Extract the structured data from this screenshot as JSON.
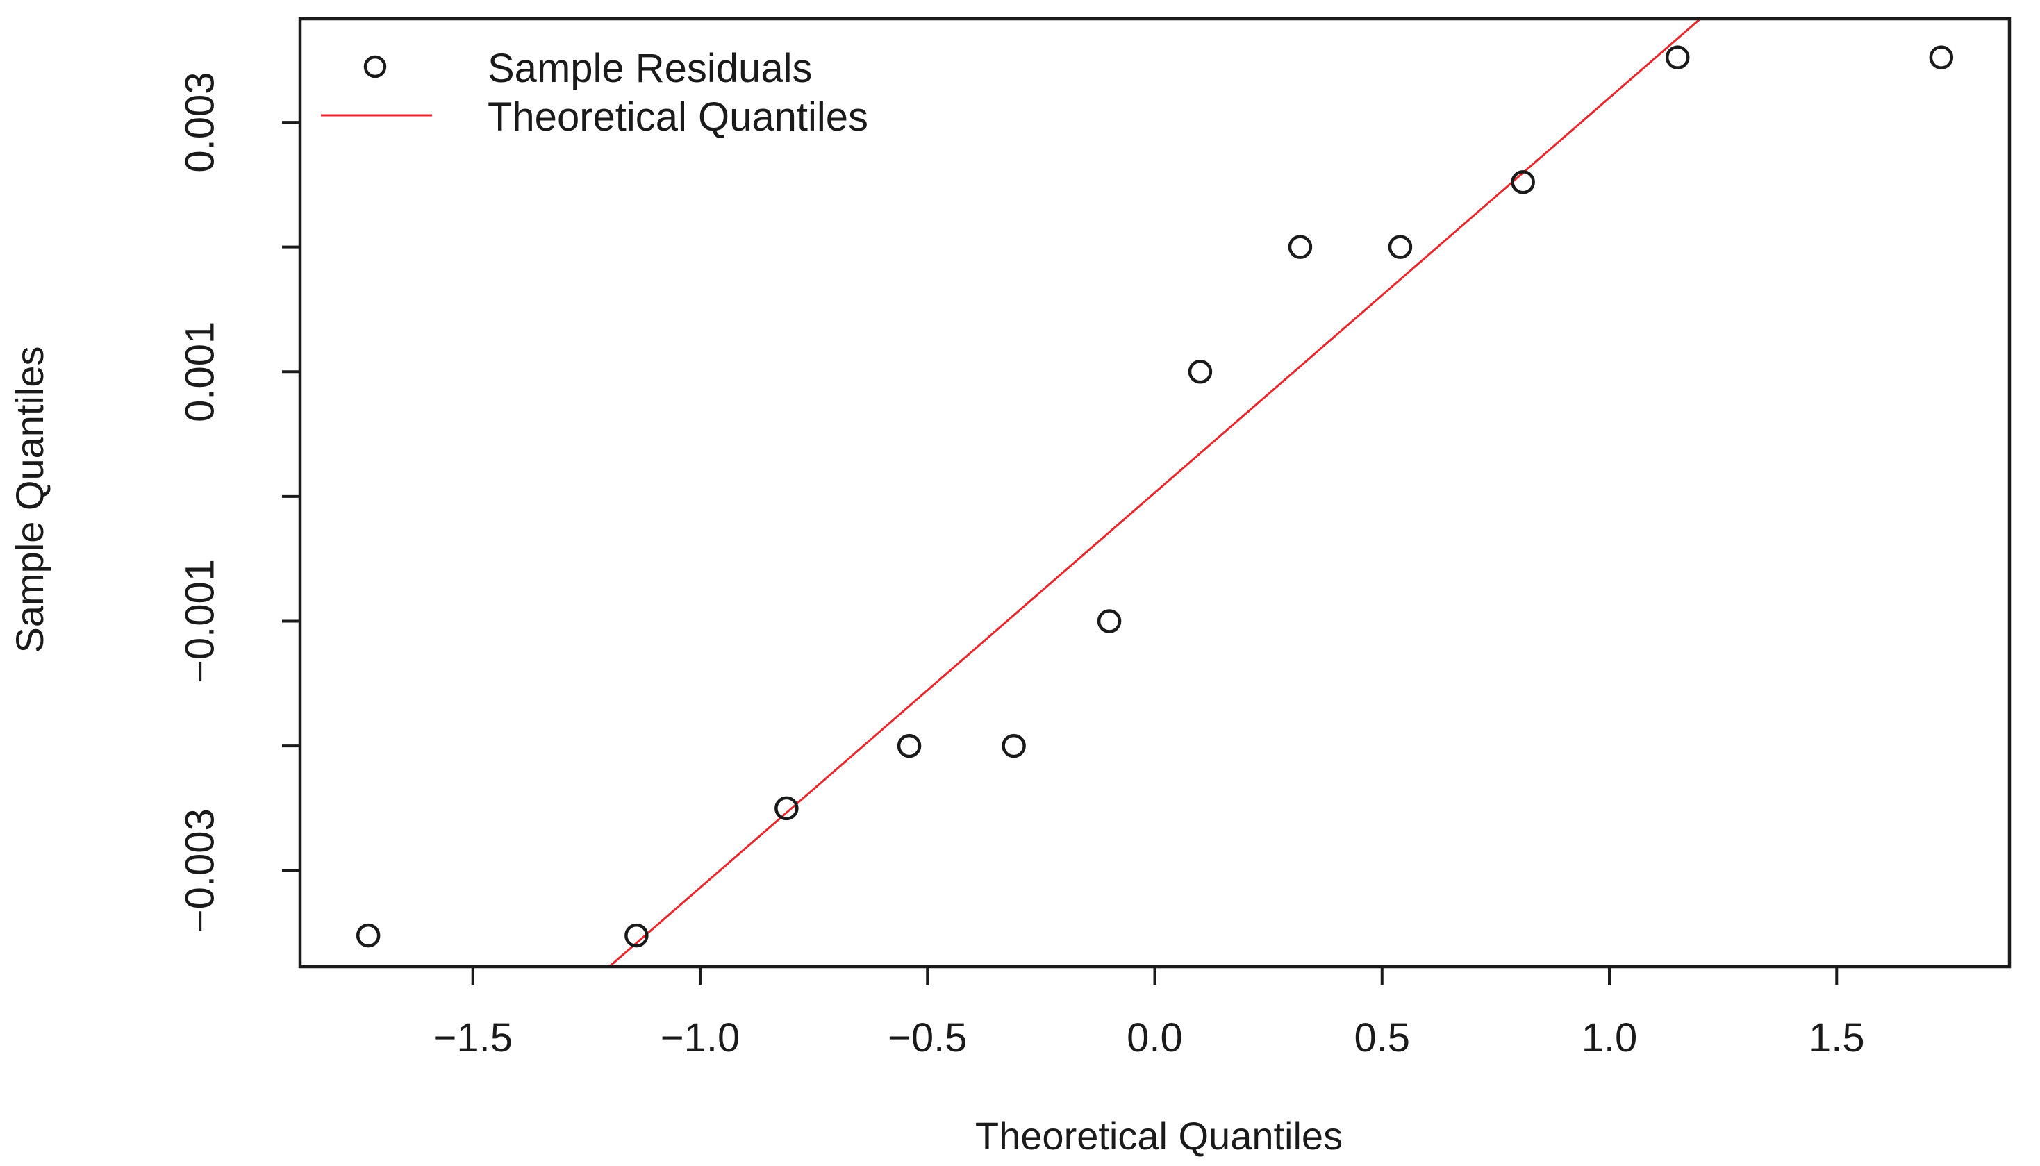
{
  "chart_data": {
    "type": "scatter",
    "title": "",
    "xlabel": "Theoretical Quantiles",
    "ylabel": "Sample Quantiles",
    "xlim": [
      -1.88,
      1.88
    ],
    "ylim": [
      -0.00377,
      0.00383
    ],
    "x_ticks": [
      -1.5,
      -1.0,
      -0.5,
      0.0,
      0.5,
      1.0,
      1.5
    ],
    "x_tick_labels": [
      "−1.5",
      "−1.0",
      "−0.5",
      "0.0",
      "0.5",
      "1.0",
      "1.5"
    ],
    "y_ticks": [
      -0.003,
      -0.002,
      -0.001,
      0.0,
      0.001,
      0.002,
      0.003
    ],
    "y_tick_labels": [
      "−0.003",
      "",
      "−0.001",
      "",
      "0.001",
      "",
      "0.003"
    ],
    "grid": false,
    "legend_position": "top-left",
    "series": [
      {
        "name": "Sample Residuals",
        "type": "scatter",
        "color": "#1a1a1a",
        "x": [
          -1.73,
          -1.14,
          -0.81,
          -0.54,
          -0.31,
          -0.1,
          0.1,
          0.32,
          0.54,
          0.81,
          1.15,
          1.73
        ],
        "y": [
          -0.00352,
          -0.00352,
          -0.0025,
          -0.002,
          -0.002,
          -0.001,
          0.001,
          0.002,
          0.002,
          0.00252,
          0.00352,
          0.00352
        ]
      },
      {
        "name": "Theoretical Quantiles",
        "type": "line",
        "color": "#e8262b",
        "x": [
          -1.2,
          1.2
        ],
        "y": [
          -0.00377,
          0.00383
        ]
      }
    ]
  }
}
